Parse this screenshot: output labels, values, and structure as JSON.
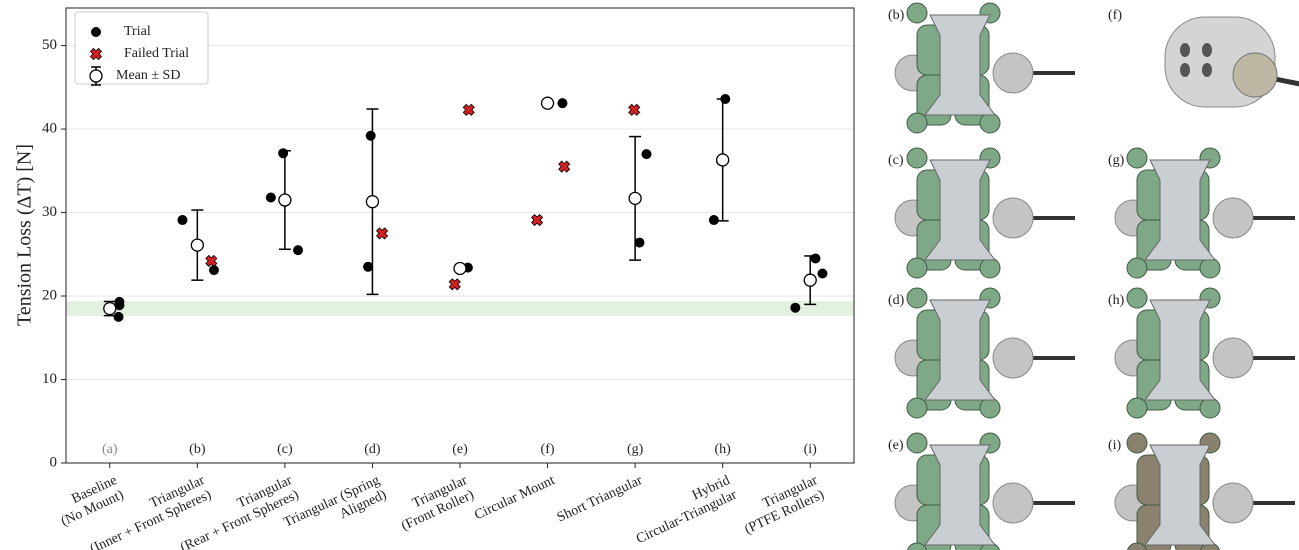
{
  "chart_data": {
    "type": "scatter",
    "y_label": "Tension Loss (ΔT) [N]",
    "categories": [
      "Baseline\n(No Mount)",
      "Triangular\n(Inner + Front Spheres)",
      "Triangular\n(Rear + Front Spheres)",
      "Triangular (Spring\nAligned)",
      "Triangular\n(Front Roller)",
      "Circular Mount",
      "Short Triangular",
      "Hybrid\nCircular-Triangular",
      "Triangular\n(PTFE Rollers)"
    ],
    "category_tags": [
      "(a)",
      "(b)",
      "(c)",
      "(d)",
      "(e)",
      "(f)",
      "(g)",
      "(h)",
      "(i)"
    ],
    "xlim": [
      -0.5,
      8.5
    ],
    "ylim": [
      0,
      54.5
    ],
    "yticks": [
      0,
      10,
      20,
      30,
      40,
      50
    ],
    "grid": true,
    "legend": "upper left",
    "band": {
      "range": [
        17.6,
        19.4
      ],
      "color": "#e3f1e1"
    },
    "series": [
      {
        "name": "Trial",
        "color": "#000000",
        "marker": "dot",
        "x": [
          0.11,
          0.11,
          0.1,
          0.83,
          1.19,
          1.84,
          1.98,
          2.15,
          2.98,
          2.95,
          4.09,
          5.17,
          6.13,
          6.05,
          7.03,
          6.98,
          6.9,
          7.83,
          8.06,
          8.14
        ],
        "values": [
          19.3,
          18.9,
          17.5,
          29.1,
          23.1,
          31.8,
          37.1,
          25.5,
          39.2,
          23.5,
          23.4,
          43.1,
          37.0,
          26.4,
          43.6,
          36.2,
          29.1,
          18.6,
          24.5,
          22.7
        ]
      },
      {
        "name": "Failed Trial",
        "color": "#d42020",
        "marker": "x",
        "x": [
          1.16,
          3.11,
          4.1,
          3.94,
          4.88,
          5.19,
          5.99
        ],
        "values": [
          24.2,
          27.5,
          42.3,
          21.4,
          29.1,
          35.5,
          42.3
        ]
      },
      {
        "name": "Mean ± SD",
        "color": "#000000",
        "marker": "hollow",
        "x": [
          0,
          1,
          2,
          3,
          4,
          5,
          6,
          7,
          8
        ],
        "values": [
          18.5,
          26.1,
          31.5,
          31.3,
          23.3,
          43.1,
          31.7,
          36.3,
          21.9
        ],
        "errors": [
          0.85,
          4.2,
          5.9,
          11.1,
          null,
          null,
          7.4,
          7.3,
          2.9
        ]
      }
    ]
  },
  "images": [
    {
      "label": "(b)"
    },
    {
      "label": "(f)"
    },
    {
      "label": "(c)"
    },
    {
      "label": "(g)"
    },
    {
      "label": "(d)"
    },
    {
      "label": "(h)"
    },
    {
      "label": "(e)"
    },
    {
      "label": "(i)"
    }
  ]
}
